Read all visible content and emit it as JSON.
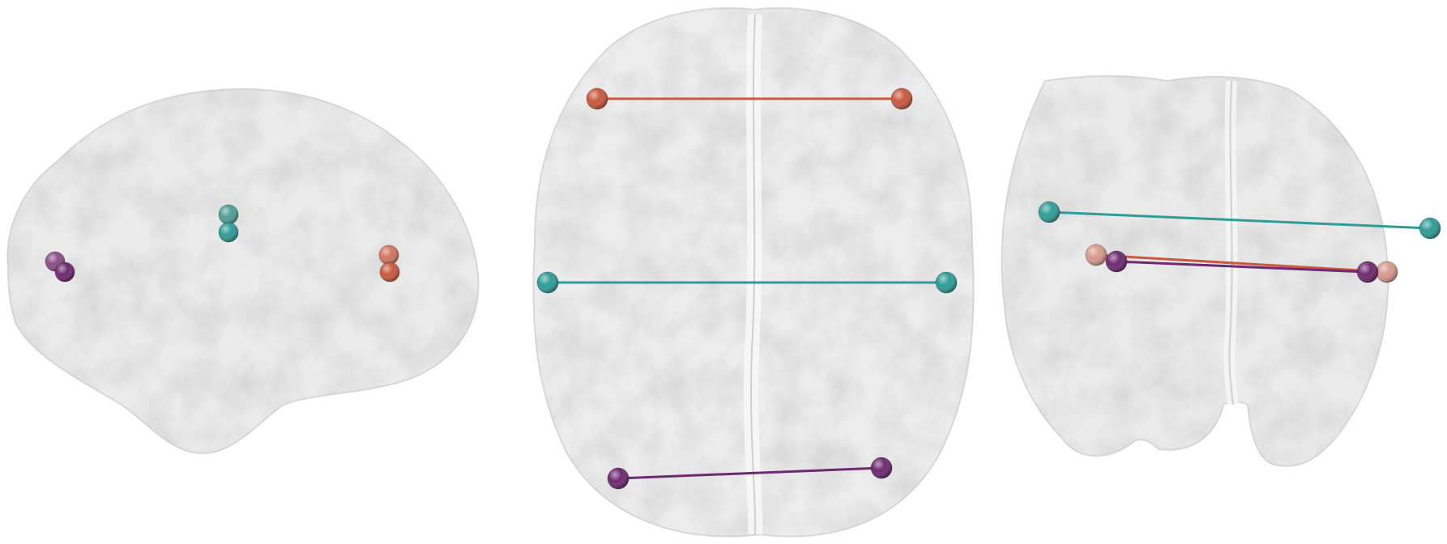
{
  "views": [
    {
      "name": "sagittal-view",
      "nodes": [
        {
          "name": "purple-node-back",
          "color": "#8a4f87"
        },
        {
          "name": "purple-node-front",
          "color": "#6e2a70"
        },
        {
          "name": "teal-node-top",
          "color": "#4e9e97"
        },
        {
          "name": "teal-node-bottom",
          "color": "#2f9c97"
        },
        {
          "name": "salmon-node-top",
          "color": "#d27562"
        },
        {
          "name": "salmon-node-bottom",
          "color": "#c9593f"
        }
      ],
      "edges": []
    },
    {
      "name": "axial-view",
      "nodes": [
        {
          "name": "salmon-node-left",
          "color": "#c9593f"
        },
        {
          "name": "salmon-node-right",
          "color": "#c9593f"
        },
        {
          "name": "teal-node-left",
          "color": "#2f9c97"
        },
        {
          "name": "teal-node-right",
          "color": "#2f9c97"
        },
        {
          "name": "purple-node-left",
          "color": "#6e2a70"
        },
        {
          "name": "purple-node-right",
          "color": "#6e2a70"
        }
      ],
      "edges": [
        {
          "name": "salmon-edge",
          "color": "#c9593f"
        },
        {
          "name": "teal-edge",
          "color": "#2f9c97"
        },
        {
          "name": "purple-edge",
          "color": "#6e2a70"
        }
      ]
    },
    {
      "name": "coronal-view",
      "nodes": [
        {
          "name": "teal-node-left",
          "color": "#2f9c97"
        },
        {
          "name": "teal-node-right",
          "color": "#2f9c97"
        },
        {
          "name": "salmon-node-left",
          "color": "#d79a8c"
        },
        {
          "name": "salmon-node-right",
          "color": "#d79a8c"
        },
        {
          "name": "purple-node-left",
          "color": "#6e2a70"
        },
        {
          "name": "purple-node-right",
          "color": "#6e2a70"
        }
      ],
      "edges": [
        {
          "name": "teal-edge",
          "color": "#2f9c97"
        },
        {
          "name": "salmon-edge",
          "color": "#c9593f"
        },
        {
          "name": "purple-edge",
          "color": "#6e2a70"
        }
      ]
    }
  ]
}
